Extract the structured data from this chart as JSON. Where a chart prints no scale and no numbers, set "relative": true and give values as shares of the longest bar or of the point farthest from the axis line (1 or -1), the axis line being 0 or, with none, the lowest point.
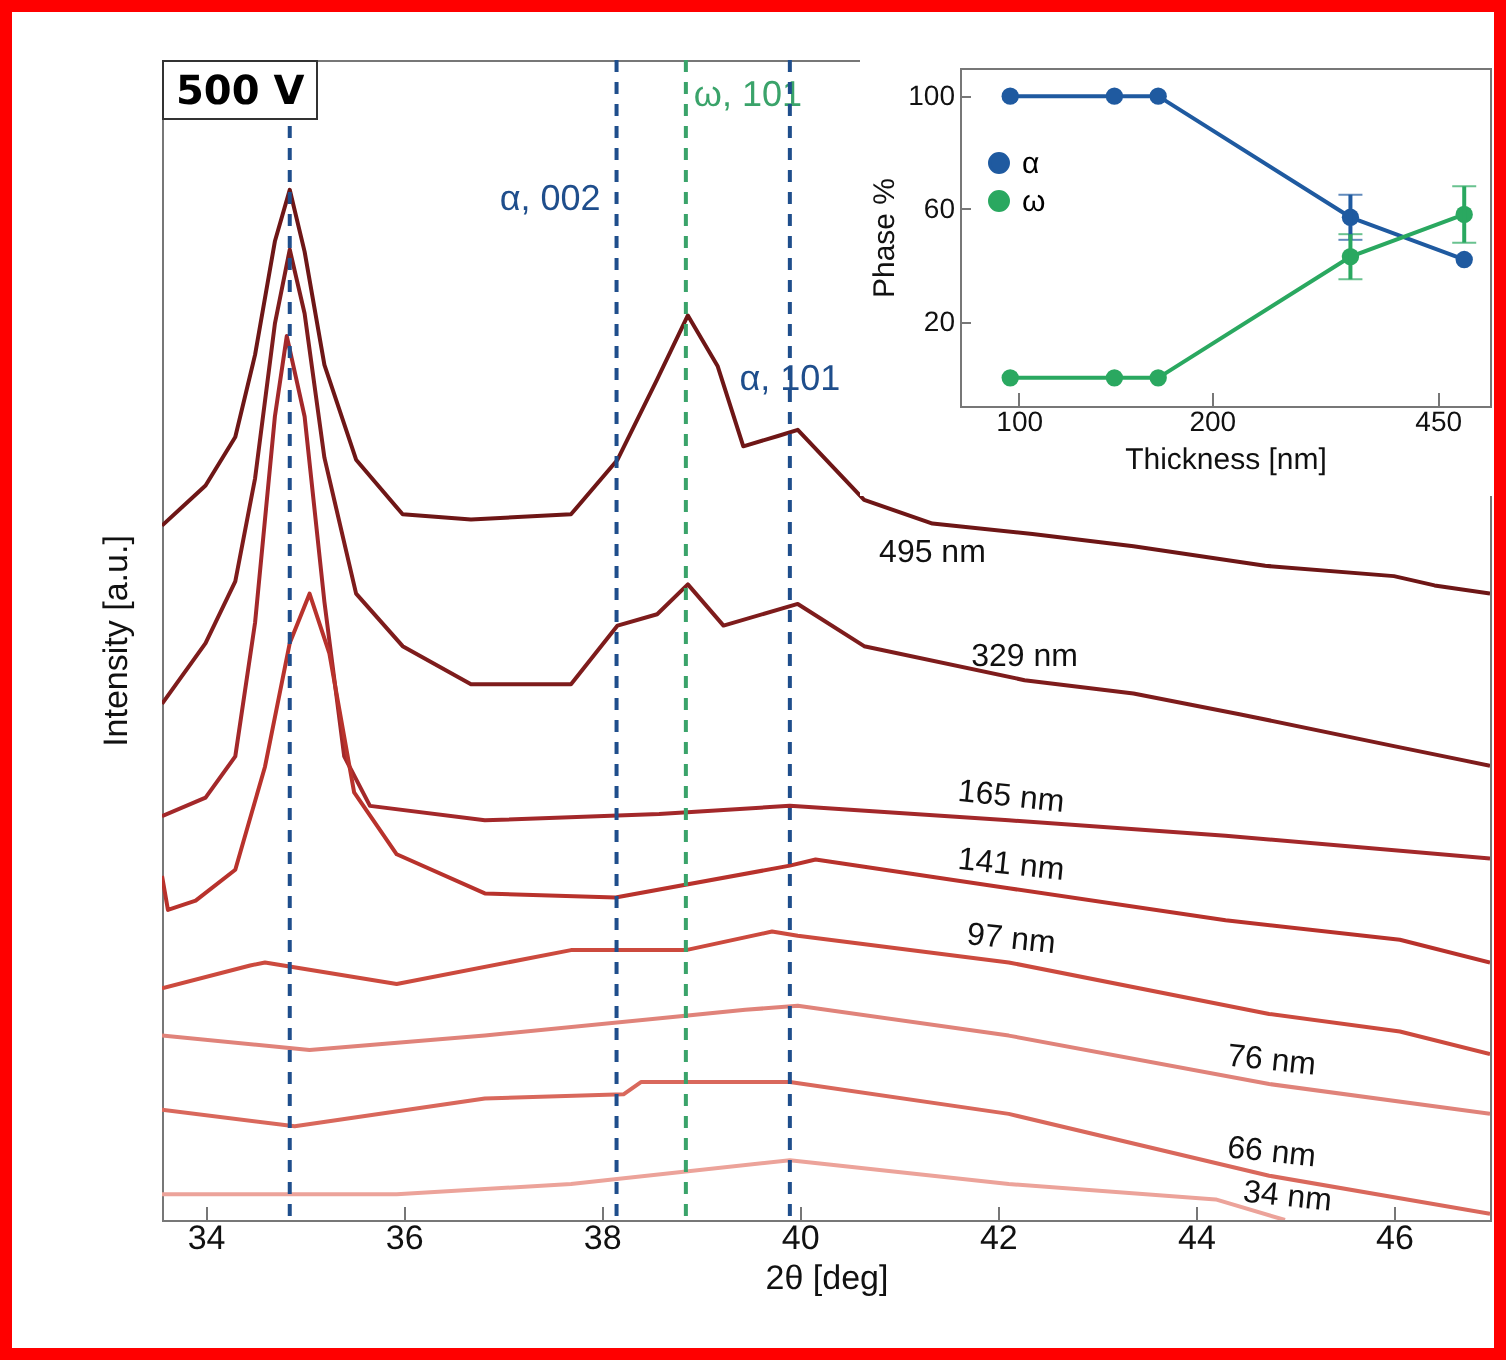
{
  "chart_data": [
    {
      "type": "line",
      "relative": true,
      "xlabel": "2θ [deg]",
      "ylabel": "Intensity [a.u.]",
      "xlim": [
        33.56,
        46.97
      ],
      "xticks": [
        34,
        36,
        38,
        40,
        42,
        44,
        46
      ],
      "annotations": [
        "500 V"
      ],
      "ref_lines": [
        {
          "axis": "x",
          "value": 34.85,
          "color": "#1f4e8c",
          "line_style": "dashed"
        },
        {
          "axis": "x",
          "value": 38.15,
          "label": "α, 002",
          "color": "#1f4e8c",
          "line_style": "dashed"
        },
        {
          "axis": "x",
          "value": 38.85,
          "label": "ω, 101",
          "color": "#3aa36a",
          "line_style": "dashed"
        },
        {
          "axis": "x",
          "value": 39.9,
          "label": "α, 101",
          "color": "#1f4e8c",
          "line_style": "dashed"
        }
      ],
      "series": [
        {
          "name": "495 nm",
          "color": "#6e1616",
          "x": [
            33.56,
            34.0,
            34.3,
            34.5,
            34.7,
            34.85,
            35.0,
            35.2,
            35.52,
            35.99,
            36.68,
            37.69,
            38.16,
            38.56,
            38.87,
            39.17,
            39.43,
            39.78,
            39.98,
            40.65,
            41.34,
            42.35,
            43.37,
            44.7,
            46.0,
            46.41,
            46.97
          ],
          "values": [
            0.674,
            0.713,
            0.76,
            0.84,
            0.95,
            1.0,
            0.94,
            0.83,
            0.738,
            0.685,
            0.68,
            0.685,
            0.738,
            0.816,
            0.878,
            0.829,
            0.751,
            0.761,
            0.767,
            0.699,
            0.676,
            0.666,
            0.654,
            0.635,
            0.625,
            0.616,
            0.608
          ]
        },
        {
          "name": "329 nm",
          "color": "#7e1c1c",
          "x": [
            33.56,
            34.0,
            34.3,
            34.5,
            34.7,
            34.85,
            35.0,
            35.2,
            35.52,
            35.99,
            36.68,
            37.69,
            38.16,
            38.56,
            38.87,
            39.23,
            39.98,
            40.65,
            42.27,
            43.37,
            44.44,
            46.0,
            46.97
          ],
          "values": [
            0.501,
            0.56,
            0.62,
            0.72,
            0.87,
            0.942,
            0.88,
            0.74,
            0.608,
            0.557,
            0.52,
            0.52,
            0.577,
            0.588,
            0.617,
            0.577,
            0.598,
            0.557,
            0.524,
            0.511,
            0.491,
            0.46,
            0.441
          ]
        },
        {
          "name": "165 nm",
          "color": "#a3282a",
          "x": [
            33.56,
            34.0,
            34.3,
            34.5,
            34.7,
            34.82,
            35.0,
            35.2,
            35.4,
            35.66,
            36.82,
            38.58,
            39.9,
            42.11,
            44.3,
            46.97
          ],
          "values": [
            0.392,
            0.41,
            0.45,
            0.58,
            0.78,
            0.858,
            0.78,
            0.6,
            0.45,
            0.402,
            0.388,
            0.394,
            0.402,
            0.388,
            0.373,
            0.351
          ]
        },
        {
          "name": "141 nm",
          "color": "#b8322c",
          "x": [
            33.56,
            33.62,
            33.9,
            34.3,
            34.6,
            34.85,
            35.05,
            35.25,
            35.5,
            35.93,
            36.82,
            38.14,
            39.9,
            40.16,
            42.11,
            44.3,
            46.06,
            46.97
          ],
          "values": [
            0.334,
            0.301,
            0.31,
            0.34,
            0.44,
            0.56,
            0.608,
            0.55,
            0.415,
            0.355,
            0.317,
            0.313,
            0.344,
            0.35,
            0.322,
            0.291,
            0.272,
            0.25
          ]
        },
        {
          "name": "97 nm",
          "color": "#cc4a3e",
          "x": [
            33.56,
            34.45,
            34.6,
            35.93,
            37.69,
            38.85,
            39.72,
            39.98,
            42.11,
            44.74,
            46.06,
            46.97
          ],
          "values": [
            0.225,
            0.247,
            0.25,
            0.229,
            0.262,
            0.262,
            0.28,
            0.276,
            0.25,
            0.2,
            0.183,
            0.161
          ]
        },
        {
          "name": "76 nm",
          "color": "#e0837a",
          "x": [
            33.56,
            35.05,
            36.82,
            39.45,
            39.98,
            42.11,
            44.74,
            46.97
          ],
          "values": [
            0.179,
            0.165,
            0.179,
            0.204,
            0.208,
            0.179,
            0.132,
            0.103
          ]
        },
        {
          "name": "66 nm",
          "color": "#d9685c",
          "x": [
            33.56,
            34.9,
            36.82,
            38.22,
            38.4,
            39.9,
            42.11,
            44.74,
            46.97
          ],
          "values": [
            0.107,
            0.091,
            0.118,
            0.122,
            0.134,
            0.134,
            0.103,
            0.043,
            0.006
          ]
        },
        {
          "name": "34 nm",
          "color": "#eca39a",
          "x": [
            33.56,
            35.93,
            37.69,
            39.9,
            42.11,
            44.2,
            44.9
          ],
          "values": [
            0.025,
            0.025,
            0.035,
            0.058,
            0.035,
            0.02,
            0
          ]
        }
      ]
    },
    {
      "type": "line",
      "xlabel": "Thickness [nm]",
      "ylabel": "Phase %",
      "log": "x",
      "xlim": [
        81,
        543
      ],
      "xticks": [
        100,
        200,
        450
      ],
      "ylim": [
        -10,
        110
      ],
      "yticks": [
        20,
        60,
        100
      ],
      "marker": "circle",
      "legend": "left",
      "series": [
        {
          "name": "α",
          "color": "#1f5aa0",
          "x": [
            97,
            141,
            165,
            329,
            495
          ],
          "values": [
            100,
            100,
            100,
            57,
            42
          ],
          "errors": [
            null,
            null,
            null,
            8,
            null
          ]
        },
        {
          "name": "ω",
          "color": "#2aa860",
          "x": [
            97,
            141,
            165,
            329,
            495
          ],
          "values": [
            0,
            0,
            0,
            43,
            58
          ],
          "errors": [
            null,
            null,
            null,
            8,
            10
          ]
        }
      ]
    }
  ]
}
